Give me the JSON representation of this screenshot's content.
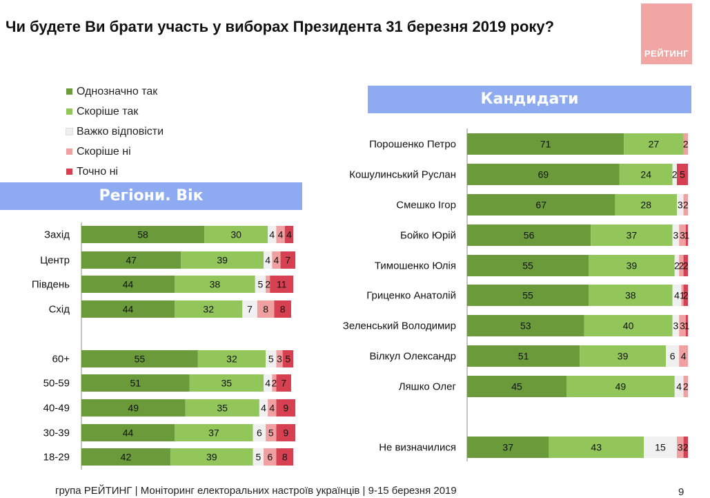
{
  "title": "Чи будете Ви брати участь у виборах Президента 31 березня 2019 року?",
  "logo_text": "РЕЙТИНГ",
  "legend": [
    {
      "label": "Однозначно так",
      "color": "#6a9a3a"
    },
    {
      "label": "Скоріше  так",
      "color": "#92c65a"
    },
    {
      "label": "Важко відповісти",
      "color": "#f0f0f0"
    },
    {
      "label": "Скоріше  ні",
      "color": "#f0a0a0"
    },
    {
      "label": "Точно ні",
      "color": "#d64050"
    }
  ],
  "banner_left": "Регіони. Вік",
  "banner_right": "Кандидати",
  "footer": "група РЕЙТИНГ | Моніторинг електоральних настроїв українців  | 9-15 березня 2019",
  "page_number": "9",
  "chart_data": [
    {
      "type": "bar",
      "orientation": "horizontal",
      "stacked": true,
      "categories": [
        "Захід",
        "Центр",
        "Південь",
        "Схід",
        "60+",
        "50-59",
        "40-49",
        "30-39",
        "18-29"
      ],
      "series": [
        {
          "name": "Однозначно так",
          "values": [
            58,
            47,
            44,
            44,
            55,
            51,
            49,
            44,
            42
          ]
        },
        {
          "name": "Скоріше  так",
          "values": [
            30,
            39,
            38,
            32,
            32,
            35,
            35,
            37,
            39
          ]
        },
        {
          "name": "Важко відповісти",
          "values": [
            4,
            4,
            5,
            7,
            5,
            4,
            4,
            6,
            5
          ]
        },
        {
          "name": "Скоріше  ні",
          "values": [
            4,
            4,
            2,
            8,
            3,
            2,
            4,
            5,
            6
          ]
        },
        {
          "name": "Точно ні",
          "values": [
            4,
            7,
            11,
            8,
            5,
            7,
            9,
            9,
            8
          ]
        }
      ],
      "xlim": [
        0,
        100
      ]
    },
    {
      "type": "bar",
      "orientation": "horizontal",
      "stacked": true,
      "categories": [
        "Порошенко Петро",
        "Кошулинський Руслан",
        "Смешко Ігор",
        "Бойко Юрій",
        "Тимошенко Юлія",
        "Гриценко Анатолій",
        "Зеленський Володимир",
        "Вілкул Олександр",
        "Ляшко Олег",
        "Не визначилися"
      ],
      "series": [
        {
          "name": "Однозначно так",
          "values": [
            71,
            69,
            67,
            56,
            55,
            55,
            53,
            51,
            45,
            37
          ]
        },
        {
          "name": "Скоріше  так",
          "values": [
            27,
            24,
            28,
            37,
            39,
            38,
            40,
            39,
            49,
            43
          ]
        },
        {
          "name": "Важко відповісти",
          "values": [
            0,
            2,
            3,
            3,
            2,
            4,
            3,
            6,
            4,
            15
          ]
        },
        {
          "name": "Скоріше  ні",
          "values": [
            2,
            0,
            2,
            3,
            2,
            1,
            3,
            4,
            2,
            3
          ]
        },
        {
          "name": "Точно ні",
          "values": [
            0,
            5,
            0,
            1,
            2,
            2,
            1,
            0,
            0,
            2
          ]
        }
      ],
      "xlim": [
        0,
        100
      ]
    }
  ]
}
